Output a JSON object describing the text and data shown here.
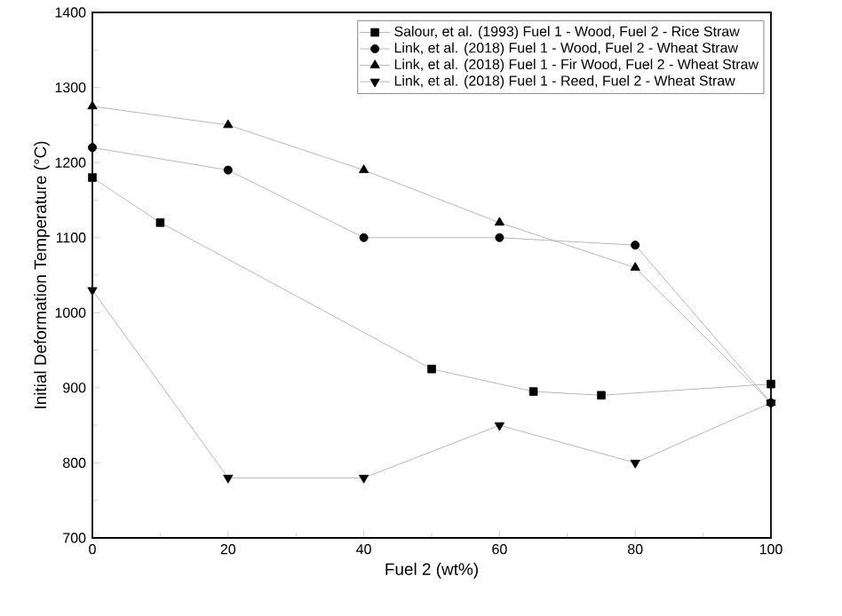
{
  "chart_data": {
    "type": "line",
    "xlabel": "Fuel 2 (wt%)",
    "ylabel": "Initial Deformation Temperature (°C)",
    "xlim": [
      0,
      100
    ],
    "xticks": [
      0,
      20,
      40,
      60,
      80,
      100
    ],
    "ylim": [
      700,
      1400
    ],
    "yticks": [
      700,
      800,
      900,
      1000,
      1100,
      1200,
      1300,
      1400
    ],
    "legend": "top right",
    "grid": false,
    "series": [
      {
        "name": "Salour, et al. (1993) Fuel 1 - Wood, Fuel 2 - Rice Straw",
        "color": "#000000",
        "marker": "square",
        "x": [
          0,
          10,
          50,
          65,
          75,
          100
        ],
        "values": [
          1180,
          1120,
          925,
          895,
          890,
          905
        ]
      },
      {
        "name": "Link, et al. (2018) Fuel 1 - Wood, Fuel 2 - Wheat Straw",
        "color": "#000000",
        "marker": "circle",
        "x": [
          0,
          20,
          40,
          60,
          80,
          100
        ],
        "values": [
          1220,
          1190,
          1100,
          1100,
          1090,
          880
        ]
      },
      {
        "name": "Link, et al. (2018) Fuel 1 - Fir Wood, Fuel 2 - Wheat Straw",
        "color": "#000000",
        "marker": "triangle",
        "x": [
          0,
          20,
          40,
          60,
          80,
          100
        ],
        "values": [
          1275,
          1250,
          1190,
          1120,
          1060,
          880
        ]
      },
      {
        "name": "Link, et al. (2018) Fuel 1 - Reed, Fuel 2 - Wheat Straw",
        "color": "#000000",
        "marker": "triangle-down",
        "x": [
          0,
          20,
          40,
          60,
          80,
          100
        ],
        "values": [
          1030,
          780,
          780,
          850,
          800,
          880
        ]
      }
    ]
  }
}
